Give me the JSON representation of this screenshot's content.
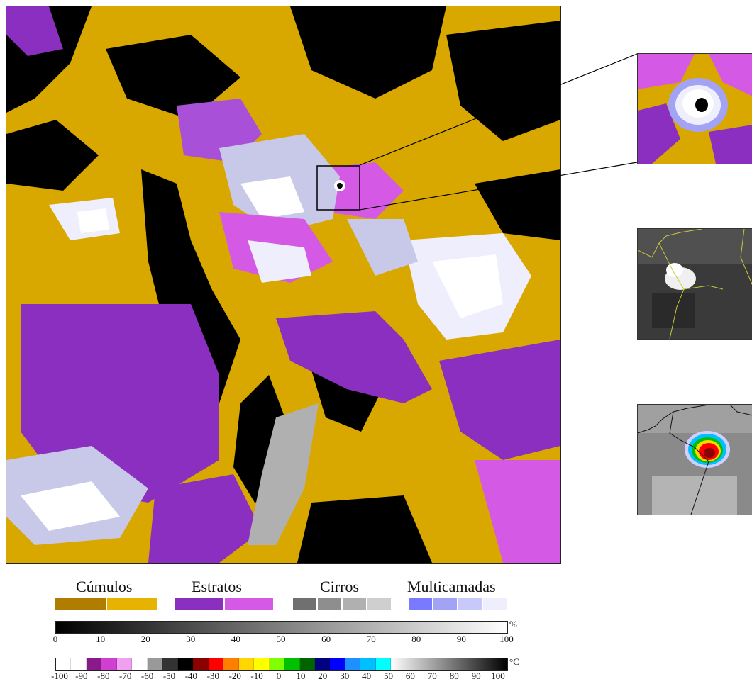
{
  "legend": {
    "categories": [
      {
        "name": "Cúmulos",
        "colors": [
          "#b07d00",
          "#e6b400"
        ]
      },
      {
        "name": "Estratos",
        "colors": [
          "#8a2fbf",
          "#d45ae6"
        ]
      },
      {
        "name": "Cirros",
        "colors": [
          "#707070",
          "#8e8e8e",
          "#b0b0b0",
          "#cfcfcf"
        ]
      },
      {
        "name": "Multicamadas",
        "colors": [
          "#7a7aff",
          "#a3a3f5",
          "#c8c8fa",
          "#eeeefc"
        ]
      }
    ]
  },
  "scale_percent": {
    "unit": "%",
    "ticks": [
      "0",
      "10",
      "20",
      "30",
      "40",
      "50",
      "60",
      "70",
      "80",
      "90",
      "100"
    ]
  },
  "scale_temperature": {
    "unit": "°C",
    "ticks": [
      "-100",
      "-90",
      "-80",
      "-70",
      "-60",
      "-50",
      "-40",
      "-30",
      "-20",
      "-10",
      "0",
      "10",
      "20",
      "30",
      "40",
      "50",
      "60",
      "70",
      "80",
      "90",
      "100"
    ],
    "colors": [
      "#ffffff",
      "#ffffff",
      "#8a1a8a",
      "#d040d0",
      "#f0a0f0",
      "#ffffff",
      "#999999",
      "#333333",
      "#000000",
      "#8b0000",
      "#ff0000",
      "#ff7f00",
      "#ffd700",
      "#ffff00",
      "#7fff00",
      "#00c000",
      "#006400",
      "#000080",
      "#0000ff",
      "#1e90ff",
      "#00bfff",
      "#00ffff"
    ]
  }
}
